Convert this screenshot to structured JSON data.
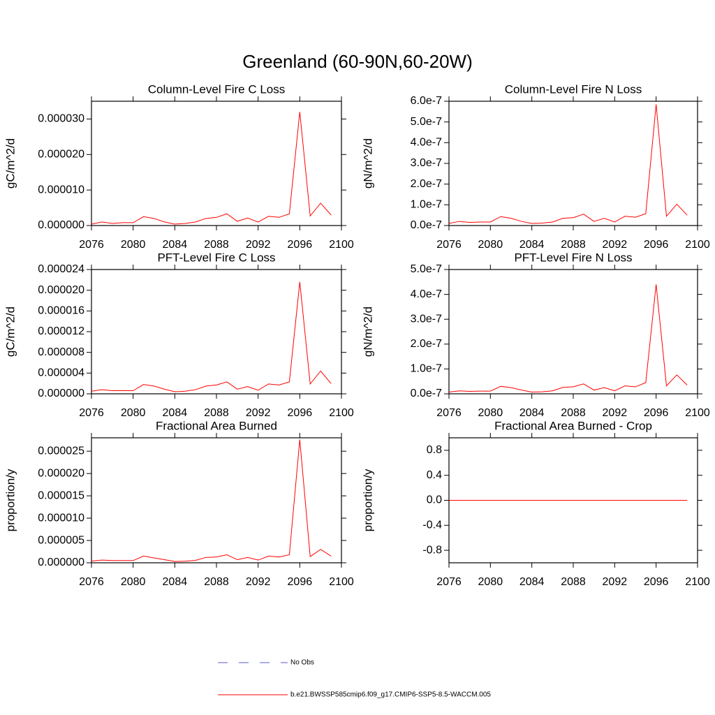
{
  "title": "Greenland (60-90N,60-20W)",
  "legend": [
    {
      "name": "No Obs",
      "color": "#5a5ad0",
      "dash": true
    },
    {
      "name": "b.e21.BWSSP585cmip6.f09_g17.CMIP6-SSP5-8.5-WACCM.005",
      "color": "#ff0000",
      "dash": false
    }
  ],
  "chart_data": [
    {
      "type": "line",
      "title": "Column-Level Fire C Loss",
      "ylabel": "gC/m^2/d",
      "x": [
        2076,
        2077,
        2078,
        2079,
        2080,
        2081,
        2082,
        2083,
        2084,
        2085,
        2086,
        2087,
        2088,
        2089,
        2090,
        2091,
        2092,
        2093,
        2094,
        2095,
        2096,
        2097,
        2098,
        2099
      ],
      "values": [
        4e-07,
        1e-06,
        6e-07,
        8e-07,
        8e-07,
        2.5e-06,
        2e-06,
        1e-06,
        4e-07,
        6e-07,
        1e-06,
        2e-06,
        2.3e-06,
        3.3e-06,
        1.2e-06,
        2.1e-06,
        1e-06,
        2.6e-06,
        2.3e-06,
        3.3e-06,
        3.2e-05,
        2.7e-06,
        6.3e-06,
        3e-06
      ],
      "xlim": [
        2076,
        2100
      ],
      "xticks": [
        2076,
        2080,
        2084,
        2088,
        2092,
        2096,
        2100
      ],
      "ylim": [
        0,
        3.5e-05
      ],
      "yticks": [
        {
          "value": 0,
          "label": "0.000000"
        },
        {
          "value": 1e-05,
          "label": "0.000010"
        },
        {
          "value": 2e-05,
          "label": "0.000020"
        },
        {
          "value": 3e-05,
          "label": "0.000030"
        }
      ]
    },
    {
      "type": "line",
      "title": "Column-Level Fire N Loss",
      "ylabel": "gN/m^2/d",
      "x": [
        2076,
        2077,
        2078,
        2079,
        2080,
        2081,
        2082,
        2083,
        2084,
        2085,
        2086,
        2087,
        2088,
        2089,
        2090,
        2091,
        2092,
        2093,
        2094,
        2095,
        2096,
        2097,
        2098,
        2099
      ],
      "values": [
        1e-08,
        2e-08,
        1.5e-08,
        1.7e-08,
        1.7e-08,
        4.3e-08,
        3.5e-08,
        2e-08,
        1e-08,
        1.2e-08,
        1.7e-08,
        3.5e-08,
        3.8e-08,
        5.5e-08,
        2e-08,
        3.5e-08,
        1.7e-08,
        4.5e-08,
        4e-08,
        5.7e-08,
        5.85e-07,
        4.5e-08,
        1.03e-07,
        5e-08
      ],
      "xlim": [
        2076,
        2100
      ],
      "xticks": [
        2076,
        2080,
        2084,
        2088,
        2092,
        2096,
        2100
      ],
      "ylim": [
        0,
        6e-07
      ],
      "yticks": [
        {
          "value": 0,
          "label": "0.0e-7"
        },
        {
          "value": 1e-07,
          "label": "1.0e-7"
        },
        {
          "value": 2e-07,
          "label": "2.0e-7"
        },
        {
          "value": 3e-07,
          "label": "3.0e-7"
        },
        {
          "value": 4e-07,
          "label": "4.0e-7"
        },
        {
          "value": 5e-07,
          "label": "5.0e-7"
        },
        {
          "value": 6e-07,
          "label": "6.0e-7"
        }
      ]
    },
    {
      "type": "line",
      "title": "PFT-Level Fire C Loss",
      "ylabel": "gC/m^2/d",
      "x": [
        2076,
        2077,
        2078,
        2079,
        2080,
        2081,
        2082,
        2083,
        2084,
        2085,
        2086,
        2087,
        2088,
        2089,
        2090,
        2091,
        2092,
        2093,
        2094,
        2095,
        2096,
        2097,
        2098,
        2099
      ],
      "values": [
        5e-07,
        8e-07,
        6e-07,
        6e-07,
        6e-07,
        1.8e-06,
        1.5e-06,
        9e-07,
        4e-07,
        5e-07,
        8e-07,
        1.5e-06,
        1.7e-06,
        2.3e-06,
        9e-07,
        1.4e-06,
        7e-07,
        1.9e-06,
        1.7e-06,
        2.3e-06,
        2.16e-05,
        1.9e-06,
        4.4e-06,
        2e-06
      ],
      "xlim": [
        2076,
        2100
      ],
      "xticks": [
        2076,
        2080,
        2084,
        2088,
        2092,
        2096,
        2100
      ],
      "ylim": [
        0,
        2.4e-05
      ],
      "yticks": [
        {
          "value": 0,
          "label": "0.000000"
        },
        {
          "value": 4e-06,
          "label": "0.000004"
        },
        {
          "value": 8e-06,
          "label": "0.000008"
        },
        {
          "value": 1.2e-05,
          "label": "0.000012"
        },
        {
          "value": 1.6e-05,
          "label": "0.000016"
        },
        {
          "value": 2e-05,
          "label": "0.000020"
        },
        {
          "value": 2.4e-05,
          "label": "0.000024"
        }
      ]
    },
    {
      "type": "line",
      "title": "PFT-Level Fire N Loss",
      "ylabel": "gN/m^2/d",
      "x": [
        2076,
        2077,
        2078,
        2079,
        2080,
        2081,
        2082,
        2083,
        2084,
        2085,
        2086,
        2087,
        2088,
        2089,
        2090,
        2091,
        2092,
        2093,
        2094,
        2095,
        2096,
        2097,
        2098,
        2099
      ],
      "values": [
        7e-09,
        1.2e-08,
        1e-08,
        1.1e-08,
        1.1e-08,
        3e-08,
        2.5e-08,
        1.5e-08,
        7e-09,
        8e-09,
        1.2e-08,
        2.6e-08,
        2.8e-08,
        4e-08,
        1.5e-08,
        2.5e-08,
        1.2e-08,
        3.2e-08,
        2.8e-08,
        4.5e-08,
        4.4e-07,
        3.2e-08,
        7.6e-08,
        3.5e-08
      ],
      "xlim": [
        2076,
        2100
      ],
      "xticks": [
        2076,
        2080,
        2084,
        2088,
        2092,
        2096,
        2100
      ],
      "ylim": [
        0,
        5e-07
      ],
      "yticks": [
        {
          "value": 0,
          "label": "0.0e-7"
        },
        {
          "value": 1e-07,
          "label": "1.0e-7"
        },
        {
          "value": 2e-07,
          "label": "2.0e-7"
        },
        {
          "value": 3e-07,
          "label": "3.0e-7"
        },
        {
          "value": 4e-07,
          "label": "4.0e-7"
        },
        {
          "value": 5e-07,
          "label": "5.0e-7"
        }
      ]
    },
    {
      "type": "line",
      "title": "Fractional Area Burned",
      "ylabel": "proportion/y",
      "x": [
        2076,
        2077,
        2078,
        2079,
        2080,
        2081,
        2082,
        2083,
        2084,
        2085,
        2086,
        2087,
        2088,
        2089,
        2090,
        2091,
        2092,
        2093,
        2094,
        2095,
        2096,
        2097,
        2098,
        2099
      ],
      "values": [
        4e-07,
        6e-07,
        5e-07,
        5e-07,
        5e-07,
        1.5e-06,
        1.1e-06,
        7e-07,
        3e-07,
        3.5e-07,
        5.5e-07,
        1.2e-06,
        1.3e-06,
        1.8e-06,
        7e-07,
        1.2e-06,
        6e-07,
        1.5e-06,
        1.3e-06,
        1.8e-06,
        2.76e-05,
        1.4e-06,
        3e-06,
        1.5e-06
      ],
      "xlim": [
        2076,
        2100
      ],
      "xticks": [
        2076,
        2080,
        2084,
        2088,
        2092,
        2096,
        2100
      ],
      "ylim": [
        0,
        2.8e-05
      ],
      "yticks": [
        {
          "value": 0,
          "label": "0.000000"
        },
        {
          "value": 5e-06,
          "label": "0.000005"
        },
        {
          "value": 1e-05,
          "label": "0.000010"
        },
        {
          "value": 1.5e-05,
          "label": "0.000015"
        },
        {
          "value": 2e-05,
          "label": "0.000020"
        },
        {
          "value": 2.5e-05,
          "label": "0.000025"
        }
      ]
    },
    {
      "type": "line",
      "title": "Fractional Area Burned - Crop",
      "ylabel": "proportion/y",
      "x": [
        2076,
        2077,
        2078,
        2079,
        2080,
        2081,
        2082,
        2083,
        2084,
        2085,
        2086,
        2087,
        2088,
        2089,
        2090,
        2091,
        2092,
        2093,
        2094,
        2095,
        2096,
        2097,
        2098,
        2099
      ],
      "values": [
        0,
        0,
        0,
        0,
        0,
        0,
        0,
        0,
        0,
        0,
        0,
        0,
        0,
        0,
        0,
        0,
        0,
        0,
        0,
        0,
        0,
        0,
        0,
        0
      ],
      "xlim": [
        2076,
        2100
      ],
      "xticks": [
        2076,
        2080,
        2084,
        2088,
        2092,
        2096,
        2100
      ],
      "ylim": [
        -1,
        1
      ],
      "yticks": [
        -0.8,
        -0.4,
        {
          "value": 0,
          "label": "0.0"
        },
        0.4,
        0.8
      ]
    }
  ]
}
